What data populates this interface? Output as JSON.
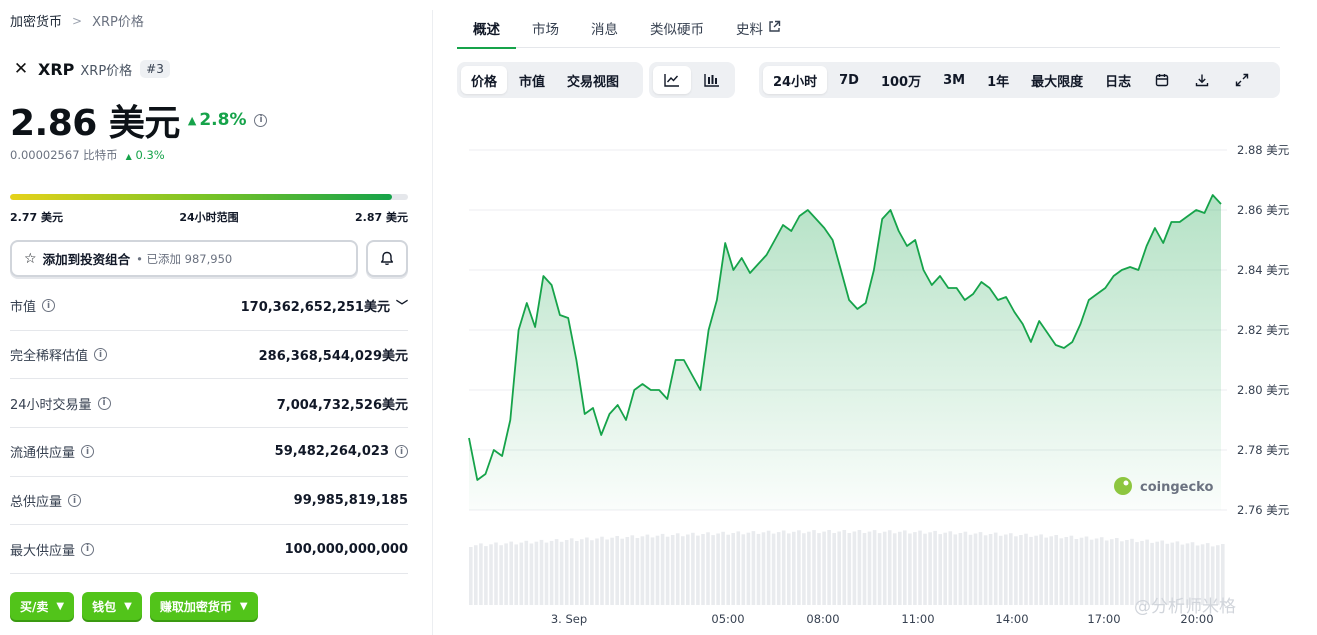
{
  "breadcrumb": {
    "root": "加密货币",
    "current": "XRP价格"
  },
  "coin": {
    "symbol": "XRP",
    "name_label": "XRP价格",
    "rank": "#3"
  },
  "price": {
    "value": "2.86 美元",
    "change": "2.8%",
    "btc_value": "0.00002567 比特币",
    "btc_change": "0.3%"
  },
  "range": {
    "low": "2.77 美元",
    "label": "24小时范围",
    "high": "2.87 美元",
    "fill_percent": 96
  },
  "watchlist": {
    "label": "添加到投资组合",
    "added": "• 已添加 987,950"
  },
  "stats": [
    {
      "label": "市值",
      "value": "170,362,652,251美元"
    },
    {
      "label": "完全稀释估值",
      "value": "286,368,544,029美元"
    },
    {
      "label": "24小时交易量",
      "value": "7,004,732,526美元"
    },
    {
      "label": "流通供应量",
      "value": "59,482,264,023"
    },
    {
      "label": "总供应量",
      "value": "99,985,819,185"
    },
    {
      "label": "最大供应量",
      "value": "100,000,000,000"
    }
  ],
  "actions": [
    "买/卖",
    "钱包",
    "赚取加密货币"
  ],
  "tabs": [
    "概述",
    "市场",
    "消息",
    "类似硬币",
    "史料"
  ],
  "chart_toolbar": {
    "view": [
      "价格",
      "市值",
      "交易视图"
    ],
    "ranges": [
      "24小时",
      "7D",
      "100万",
      "3M",
      "1年",
      "最大限度",
      "日志"
    ]
  },
  "watermark": {
    "brand": "coingecko",
    "author": "@分析师米格"
  },
  "colors": {
    "accent": "#16a34a",
    "line": "#16a34a",
    "button": "#52c41a"
  },
  "chart_data": {
    "type": "area",
    "x_labels": [
      "3. Sep",
      "05:00",
      "08:00",
      "11:00",
      "14:00",
      "17:00",
      "20:00"
    ],
    "y_ticks": [
      "2.88 美元",
      "2.86 美元",
      "2.84 美元",
      "2.82 美元",
      "2.80 美元",
      "2.78 美元",
      "2.76 美元"
    ],
    "ylim": [
      2.76,
      2.88
    ],
    "grid": true,
    "values": [
      2.784,
      2.77,
      2.772,
      2.78,
      2.778,
      2.79,
      2.82,
      2.829,
      2.821,
      2.838,
      2.835,
      2.825,
      2.824,
      2.81,
      2.792,
      2.794,
      2.785,
      2.792,
      2.795,
      2.79,
      2.8,
      2.802,
      2.8,
      2.8,
      2.797,
      2.81,
      2.81,
      2.805,
      2.8,
      2.82,
      2.83,
      2.849,
      2.84,
      2.844,
      2.839,
      2.842,
      2.845,
      2.85,
      2.855,
      2.853,
      2.858,
      2.86,
      2.857,
      2.854,
      2.85,
      2.84,
      2.83,
      2.827,
      2.829,
      2.84,
      2.857,
      2.86,
      2.853,
      2.848,
      2.85,
      2.84,
      2.835,
      2.838,
      2.834,
      2.834,
      2.83,
      2.832,
      2.836,
      2.834,
      2.83,
      2.831,
      2.826,
      2.822,
      2.816,
      2.823,
      2.819,
      2.815,
      2.814,
      2.816,
      2.822,
      2.83,
      2.832,
      2.834,
      2.838,
      2.84,
      2.841,
      2.84,
      2.848,
      2.854,
      2.849,
      2.856,
      2.856,
      2.858,
      2.86,
      2.859,
      2.865,
      2.862
    ]
  }
}
